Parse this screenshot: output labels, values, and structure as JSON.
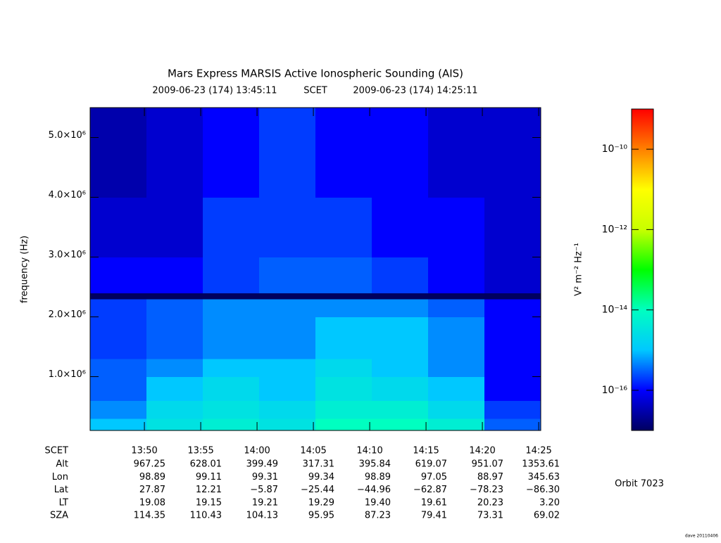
{
  "chart_data": {
    "type": "heatmap",
    "title": "Mars Express MARSIS Active Ionospheric Sounding (AIS)",
    "subtitle": [
      "2009-06-23 (174) 13:45:11",
      "SCET",
      "2009-06-23 (174) 14:25:11"
    ],
    "ylabel": "frequency (Hz)",
    "xlim": [
      825.1833,
      865.1833
    ],
    "xticks": [
      {
        "value": 830,
        "label": "13:50"
      },
      {
        "value": 835,
        "label": "13:55"
      },
      {
        "value": 840,
        "label": "14:00"
      },
      {
        "value": 845,
        "label": "14:05"
      },
      {
        "value": 850,
        "label": "14:10"
      },
      {
        "value": 855,
        "label": "14:15"
      },
      {
        "value": 860,
        "label": "14:20"
      },
      {
        "value": 865,
        "label": "14:25"
      }
    ],
    "ylim": [
      100000,
      5500000
    ],
    "yticks": [
      {
        "value": 1000000,
        "label": "1.0×10⁶"
      },
      {
        "value": 2000000,
        "label": "2.0×10⁶"
      },
      {
        "value": 3000000,
        "label": "3.0×10⁶"
      },
      {
        "value": 4000000,
        "label": "4.0×10⁶"
      },
      {
        "value": 5000000,
        "label": "5.0×10⁶"
      }
    ],
    "x_edges": [
      825.1833,
      830.1833,
      835.1833,
      840.1833,
      845.1833,
      850.1833,
      855.1833,
      860.1833,
      865.1833
    ],
    "y_edges": [
      100000,
      300000,
      600000,
      1000000,
      1300000,
      2000000,
      2300000,
      2400000,
      3000000,
      4000000,
      5500000
    ],
    "values": [
      [
        1e-15,
        3e-15,
        5e-15,
        3e-15,
        1e-14,
        1e-14,
        5e-15,
        3e-16
      ],
      [
        5e-16,
        2e-15,
        3e-15,
        2e-15,
        5e-15,
        5e-15,
        2e-15,
        2e-16
      ],
      [
        3e-16,
        1e-15,
        2e-15,
        1e-15,
        3e-15,
        2e-15,
        1e-15,
        1e-16
      ],
      [
        3e-16,
        5e-16,
        1e-15,
        1e-15,
        2e-15,
        1e-15,
        5e-16,
        1e-16
      ],
      [
        2e-16,
        3e-16,
        5e-16,
        5e-16,
        1e-15,
        1e-15,
        5e-16,
        1e-16
      ],
      [
        2e-16,
        3e-16,
        5e-16,
        5e-16,
        5e-16,
        5e-16,
        3e-16,
        1e-16
      ],
      [
        1e-17,
        1e-17,
        1e-17,
        1e-17,
        1e-17,
        1e-17,
        1e-17,
        1e-17
      ],
      [
        1e-16,
        1e-16,
        2e-16,
        3e-16,
        3e-16,
        2e-16,
        1e-16,
        5e-17
      ],
      [
        5e-17,
        5e-17,
        2e-16,
        2e-16,
        2e-16,
        1e-16,
        1e-16,
        5e-17
      ],
      [
        3e-17,
        5e-17,
        1e-16,
        2e-16,
        1e-16,
        1e-16,
        5e-17,
        5e-17
      ]
    ],
    "colorbar": {
      "label": "V² m⁻² Hz⁻¹",
      "log": true,
      "lim": [
        1e-17,
        1e-09
      ],
      "ticks": [
        {
          "value": 1e-10,
          "label": "10⁻¹⁰"
        },
        {
          "value": 1e-12,
          "label": "10⁻¹²"
        },
        {
          "value": 1e-14,
          "label": "10⁻¹⁴"
        },
        {
          "value": 1e-16,
          "label": "10⁻¹⁶"
        }
      ],
      "colormap": [
        "#000060",
        "#0000ff",
        "#00c8ff",
        "#00ffc0",
        "#00ff00",
        "#c8ff00",
        "#ffff00",
        "#ff8000",
        "#ff0000"
      ]
    },
    "table": {
      "header": "SCET",
      "rows": [
        {
          "name": "Alt",
          "values": [
            "967.25",
            "628.01",
            "399.49",
            "317.31",
            "395.84",
            "619.07",
            "951.07",
            "1353.61"
          ]
        },
        {
          "name": "Lon",
          "values": [
            "98.89",
            "99.11",
            "99.31",
            "99.34",
            "98.89",
            "97.05",
            "88.97",
            "345.63"
          ]
        },
        {
          "name": "Lat",
          "values": [
            "27.87",
            "12.21",
            "−5.87",
            "−25.44",
            "−44.96",
            "−62.87",
            "−78.23",
            "−86.30"
          ]
        },
        {
          "name": "LT",
          "values": [
            "19.08",
            "19.15",
            "19.21",
            "19.29",
            "19.40",
            "19.61",
            "20.23",
            "3.20"
          ]
        },
        {
          "name": "SZA",
          "values": [
            "114.35",
            "110.43",
            "104.13",
            "95.95",
            "87.23",
            "79.41",
            "73.31",
            "69.02"
          ]
        }
      ]
    },
    "annotations": [
      "Orbit 7023",
      "dave 20110406"
    ]
  }
}
